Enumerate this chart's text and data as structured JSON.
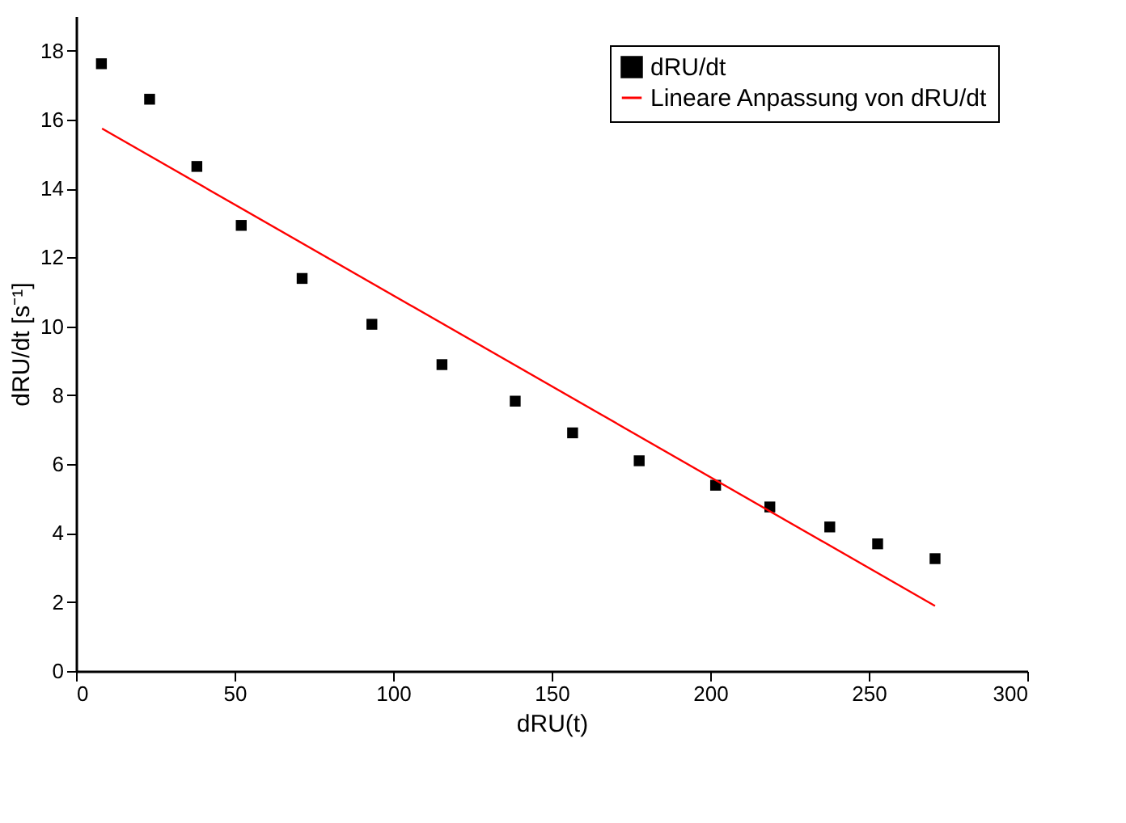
{
  "chart_data": {
    "type": "scatter",
    "xlabel": "dRU(t)",
    "ylabel": "dRU/dt [s⁻¹]",
    "xlim": [
      0,
      300
    ],
    "xticks": [
      0,
      50,
      100,
      150,
      200,
      250,
      300
    ],
    "ylim": [
      0,
      19
    ],
    "yticks": [
      0,
      2,
      4,
      6,
      8,
      10,
      12,
      14,
      16,
      18
    ],
    "grid": false,
    "legend": "top right",
    "series": [
      {
        "name": "dRU/dt",
        "marker": "square",
        "color": "#000000",
        "x": [
          8.0,
          23.2,
          38.1,
          52.1,
          71.3,
          93.3,
          115.4,
          138.5,
          156.6,
          177.6,
          201.7,
          218.8,
          237.7,
          252.8,
          270.9
        ],
        "values": [
          17.62,
          16.59,
          14.64,
          12.93,
          11.39,
          10.06,
          8.89,
          7.83,
          6.91,
          6.1,
          5.39,
          4.76,
          4.18,
          3.69,
          3.26
        ]
      },
      {
        "name": "Lineare Anpassung von dRU/dt",
        "type": "line",
        "line_style": "solid",
        "color": "#ff0000",
        "x": [
          8.2,
          270.9
        ],
        "values": [
          15.74,
          1.89
        ]
      }
    ]
  }
}
